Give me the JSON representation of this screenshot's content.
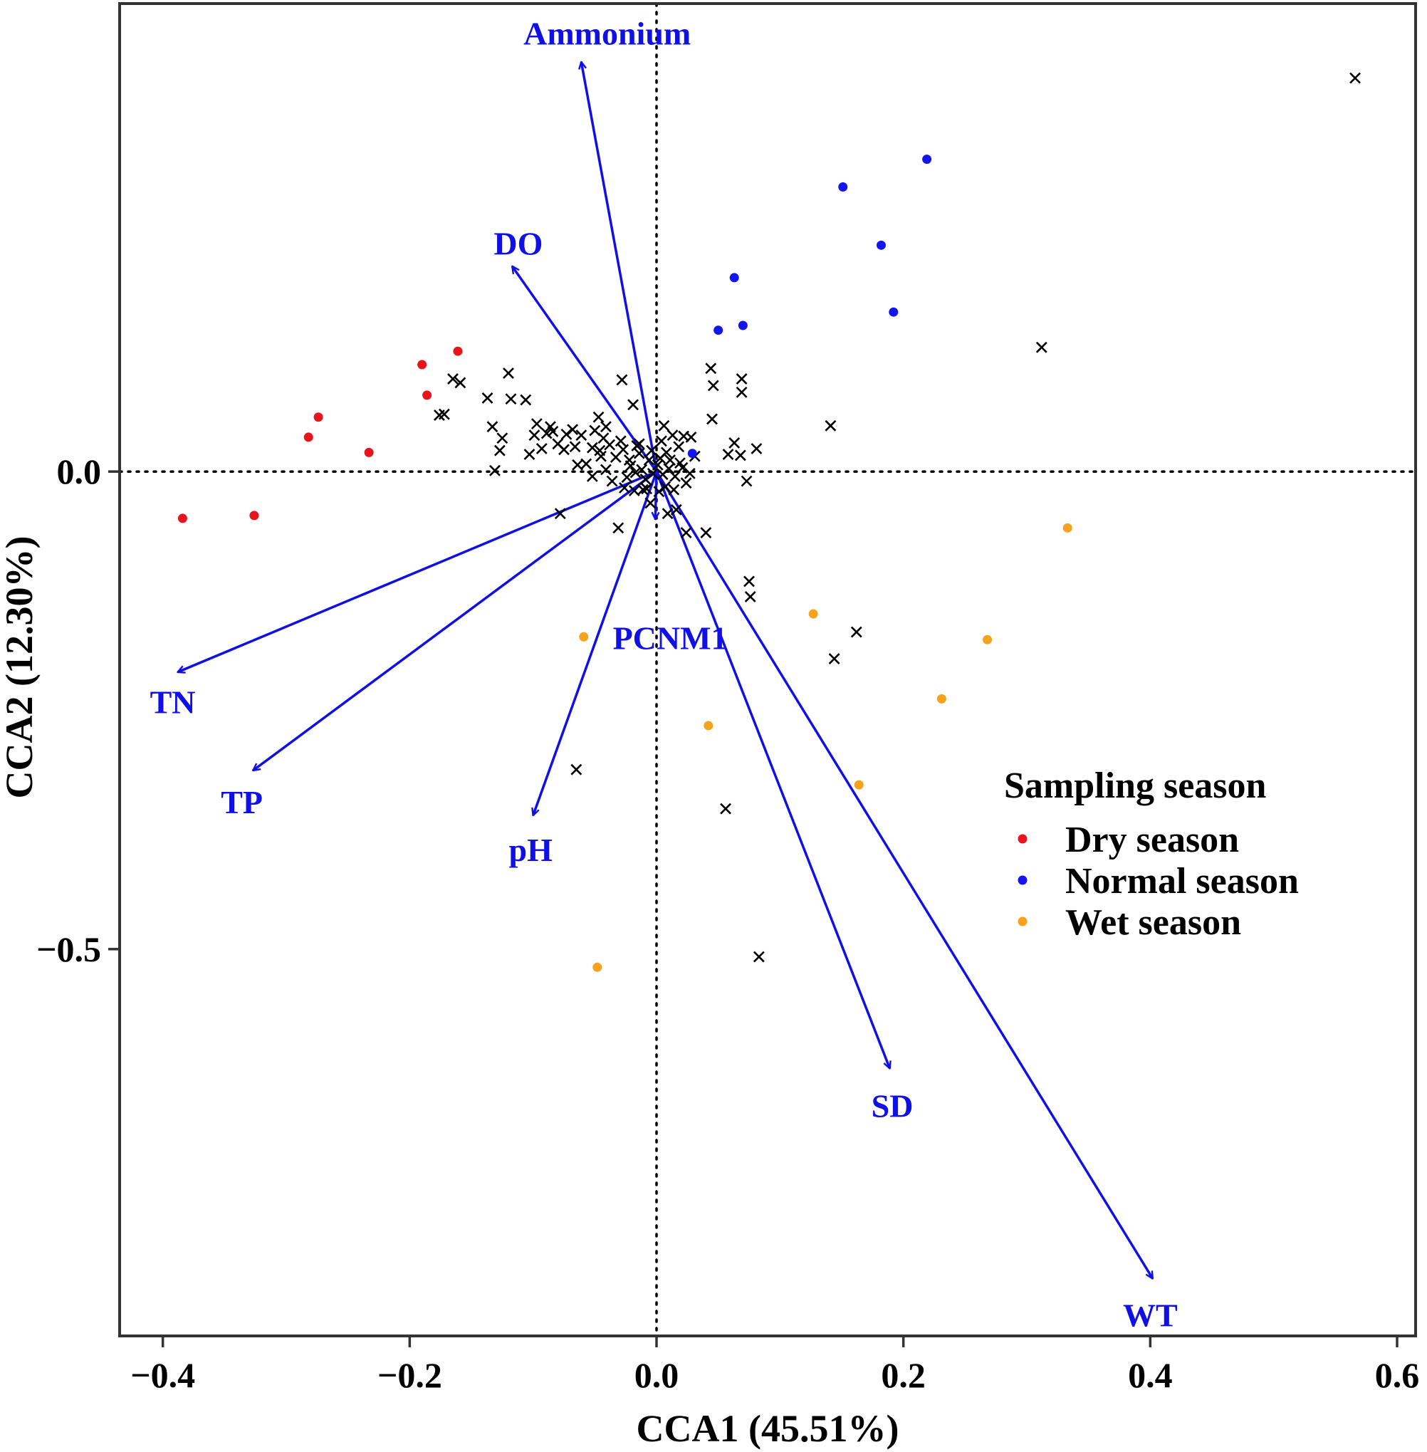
{
  "chart_data": {
    "type": "scatter",
    "subtype": "CCA triplot",
    "xlabel": "CCA1 (45.51%)",
    "ylabel": "CCA2 (12.30%)",
    "xlim": [
      -0.435,
      0.615
    ],
    "ylim": [
      -0.905,
      0.49
    ],
    "x_ticks": [
      {
        "value": -0.4,
        "label": "−0.4"
      },
      {
        "value": -0.2,
        "label": "−0.2"
      },
      {
        "value": 0.0,
        "label": "0.0"
      },
      {
        "value": 0.2,
        "label": "0.2"
      },
      {
        "value": 0.4,
        "label": "0.4"
      },
      {
        "value": 0.6,
        "label": "0.6"
      }
    ],
    "y_ticks": [
      {
        "value": 0.0,
        "label": "0.0"
      },
      {
        "value": -0.5,
        "label": "−0.5"
      }
    ],
    "reference_lines": {
      "x": 0,
      "y": 0,
      "style": "dotted"
    },
    "arrow_color": "#1010e6",
    "env_vectors": [
      {
        "name": "Ammonium",
        "x": -0.061,
        "y": 0.429,
        "label_x": -0.04,
        "label_y": 0.455
      },
      {
        "name": "DO",
        "x": -0.117,
        "y": 0.215,
        "label_x": -0.112,
        "label_y": 0.235
      },
      {
        "name": "TN",
        "x": -0.388,
        "y": -0.21,
        "label_x": -0.392,
        "label_y": -0.245
      },
      {
        "name": "TP",
        "x": -0.327,
        "y": -0.313,
        "label_x": -0.336,
        "label_y": -0.35
      },
      {
        "name": "pH",
        "x": -0.1,
        "y": -0.36,
        "label_x": -0.102,
        "label_y": -0.4
      },
      {
        "name": "PCNM1",
        "x": -0.001,
        "y": -0.05,
        "label_x": 0.011,
        "label_y": -0.178
      },
      {
        "name": "SD",
        "x": 0.189,
        "y": -0.625,
        "label_x": 0.191,
        "label_y": -0.668
      },
      {
        "name": "WT",
        "x": 0.402,
        "y": -0.845,
        "label_x": 0.4,
        "label_y": -0.887
      }
    ],
    "series": [
      {
        "name": "Dry season",
        "color": "#e8141c",
        "points": [
          [
            -0.384,
            -0.049
          ],
          [
            -0.326,
            -0.046
          ],
          [
            -0.282,
            0.036
          ],
          [
            -0.274,
            0.057
          ],
          [
            -0.233,
            0.02
          ],
          [
            -0.19,
            0.112
          ],
          [
            -0.186,
            0.08
          ],
          [
            -0.161,
            0.126
          ]
        ]
      },
      {
        "name": "Normal season",
        "color": "#1414f0",
        "points": [
          [
            0.219,
            0.327
          ],
          [
            0.151,
            0.298
          ],
          [
            0.182,
            0.237
          ],
          [
            0.192,
            0.167
          ],
          [
            0.063,
            0.203
          ],
          [
            0.07,
            0.153
          ],
          [
            0.05,
            0.148
          ],
          [
            0.029,
            0.019
          ]
        ]
      },
      {
        "name": "Wet season",
        "color": "#f5a21e",
        "points": [
          [
            0.333,
            -0.059
          ],
          [
            0.127,
            -0.149
          ],
          [
            0.268,
            -0.176
          ],
          [
            -0.059,
            -0.173
          ],
          [
            0.231,
            -0.238
          ],
          [
            0.042,
            -0.266
          ],
          [
            0.164,
            -0.328
          ],
          [
            -0.048,
            -0.519
          ]
        ]
      }
    ],
    "species": {
      "marker": "x",
      "color": "#000000",
      "points": [
        [
          0.566,
          0.412
        ],
        [
          0.312,
          0.13
        ],
        [
          0.141,
          0.048
        ],
        [
          0.162,
          -0.168
        ],
        [
          0.144,
          -0.196
        ],
        [
          0.075,
          -0.115
        ],
        [
          0.076,
          -0.131
        ],
        [
          0.056,
          -0.353
        ],
        [
          0.083,
          -0.508
        ],
        [
          -0.065,
          -0.312
        ],
        [
          -0.078,
          -0.044
        ],
        [
          -0.12,
          0.103
        ],
        [
          -0.165,
          0.097
        ],
        [
          -0.159,
          0.093
        ],
        [
          -0.172,
          0.06
        ],
        [
          -0.176,
          0.059
        ],
        [
          -0.137,
          0.077
        ],
        [
          -0.118,
          0.076
        ],
        [
          -0.106,
          0.075
        ],
        [
          -0.133,
          0.047
        ],
        [
          -0.125,
          0.035
        ],
        [
          -0.127,
          0.022
        ],
        [
          -0.131,
          0.001
        ],
        [
          -0.097,
          0.05
        ],
        [
          -0.099,
          0.038
        ],
        [
          -0.103,
          0.018
        ],
        [
          -0.086,
          0.047
        ],
        [
          -0.084,
          0.042
        ],
        [
          -0.08,
          0.029
        ],
        [
          -0.068,
          0.044
        ],
        [
          -0.066,
          0.026
        ],
        [
          -0.064,
          0.007
        ],
        [
          -0.05,
          0.043
        ],
        [
          -0.047,
          0.057
        ],
        [
          -0.041,
          0.047
        ],
        [
          -0.028,
          0.096
        ],
        [
          -0.019,
          0.07
        ],
        [
          -0.052,
          0.025
        ],
        [
          -0.057,
          0.008
        ],
        [
          -0.045,
          0.016
        ],
        [
          -0.041,
          0.002
        ],
        [
          -0.036,
          -0.01
        ],
        [
          -0.029,
          0.032
        ],
        [
          -0.022,
          0.012
        ],
        [
          -0.016,
          0.027
        ],
        [
          -0.012,
          0.002
        ],
        [
          -0.009,
          -0.008
        ],
        [
          0.006,
          0.048
        ],
        [
          0.004,
          0.032
        ],
        [
          0.008,
          0.02
        ],
        [
          0.013,
          0.038
        ],
        [
          0.011,
          0.012
        ],
        [
          0.018,
          0.026
        ],
        [
          0.021,
          0.004
        ],
        [
          0.015,
          -0.005
        ],
        [
          0.022,
          0.037
        ],
        [
          0.028,
          0.036
        ],
        [
          0.031,
          0.016
        ],
        [
          0.024,
          -0.012
        ],
        [
          -0.011,
          -0.019
        ],
        [
          -0.031,
          -0.059
        ],
        [
          -0.005,
          -0.033
        ],
        [
          0.009,
          -0.044
        ],
        [
          0.016,
          -0.04
        ],
        [
          0.024,
          -0.064
        ],
        [
          0.04,
          -0.064
        ],
        [
          0.045,
          0.055
        ],
        [
          0.046,
          0.09
        ],
        [
          0.044,
          0.108
        ],
        [
          0.069,
          0.083
        ],
        [
          0.069,
          0.097
        ],
        [
          0.068,
          0.017
        ],
        [
          0.081,
          0.024
        ],
        [
          0.058,
          0.018
        ],
        [
          0.063,
          0.03
        ],
        [
          0.073,
          -0.01
        ],
        [
          0.001,
          0.007
        ],
        [
          -0.003,
          -0.002
        ],
        [
          0.005,
          -0.003
        ],
        [
          0.01,
          0.003
        ],
        [
          -0.006,
          0.012
        ],
        [
          -0.014,
          0.019
        ],
        [
          -0.021,
          0.006
        ],
        [
          -0.017,
          -0.001
        ],
        [
          -0.024,
          -0.006
        ],
        [
          0.007,
          -0.016
        ],
        [
          0.002,
          -0.021
        ],
        [
          -0.008,
          -0.018
        ],
        [
          -0.027,
          0.023
        ],
        [
          -0.033,
          0.015
        ],
        [
          -0.038,
          0.028
        ],
        [
          -0.043,
          0.035
        ],
        [
          -0.046,
          0.022
        ],
        [
          -0.061,
          0.038
        ],
        [
          -0.073,
          0.039
        ],
        [
          -0.075,
          0.023
        ],
        [
          -0.089,
          0.04
        ],
        [
          -0.093,
          0.024
        ],
        [
          -0.052,
          -0.005
        ],
        [
          -0.026,
          -0.017
        ],
        [
          -0.018,
          -0.02
        ],
        [
          0.019,
          0.009
        ],
        [
          0.014,
          -0.019
        ],
        [
          0.027,
          -0.002
        ],
        [
          -0.014,
          0.029
        ],
        [
          -0.004,
          0.022
        ],
        [
          0.003,
          0.014
        ]
      ]
    },
    "legend": {
      "title": "Sampling season",
      "position": "right",
      "entries": [
        "Dry season",
        "Normal season",
        "Wet season"
      ]
    }
  }
}
